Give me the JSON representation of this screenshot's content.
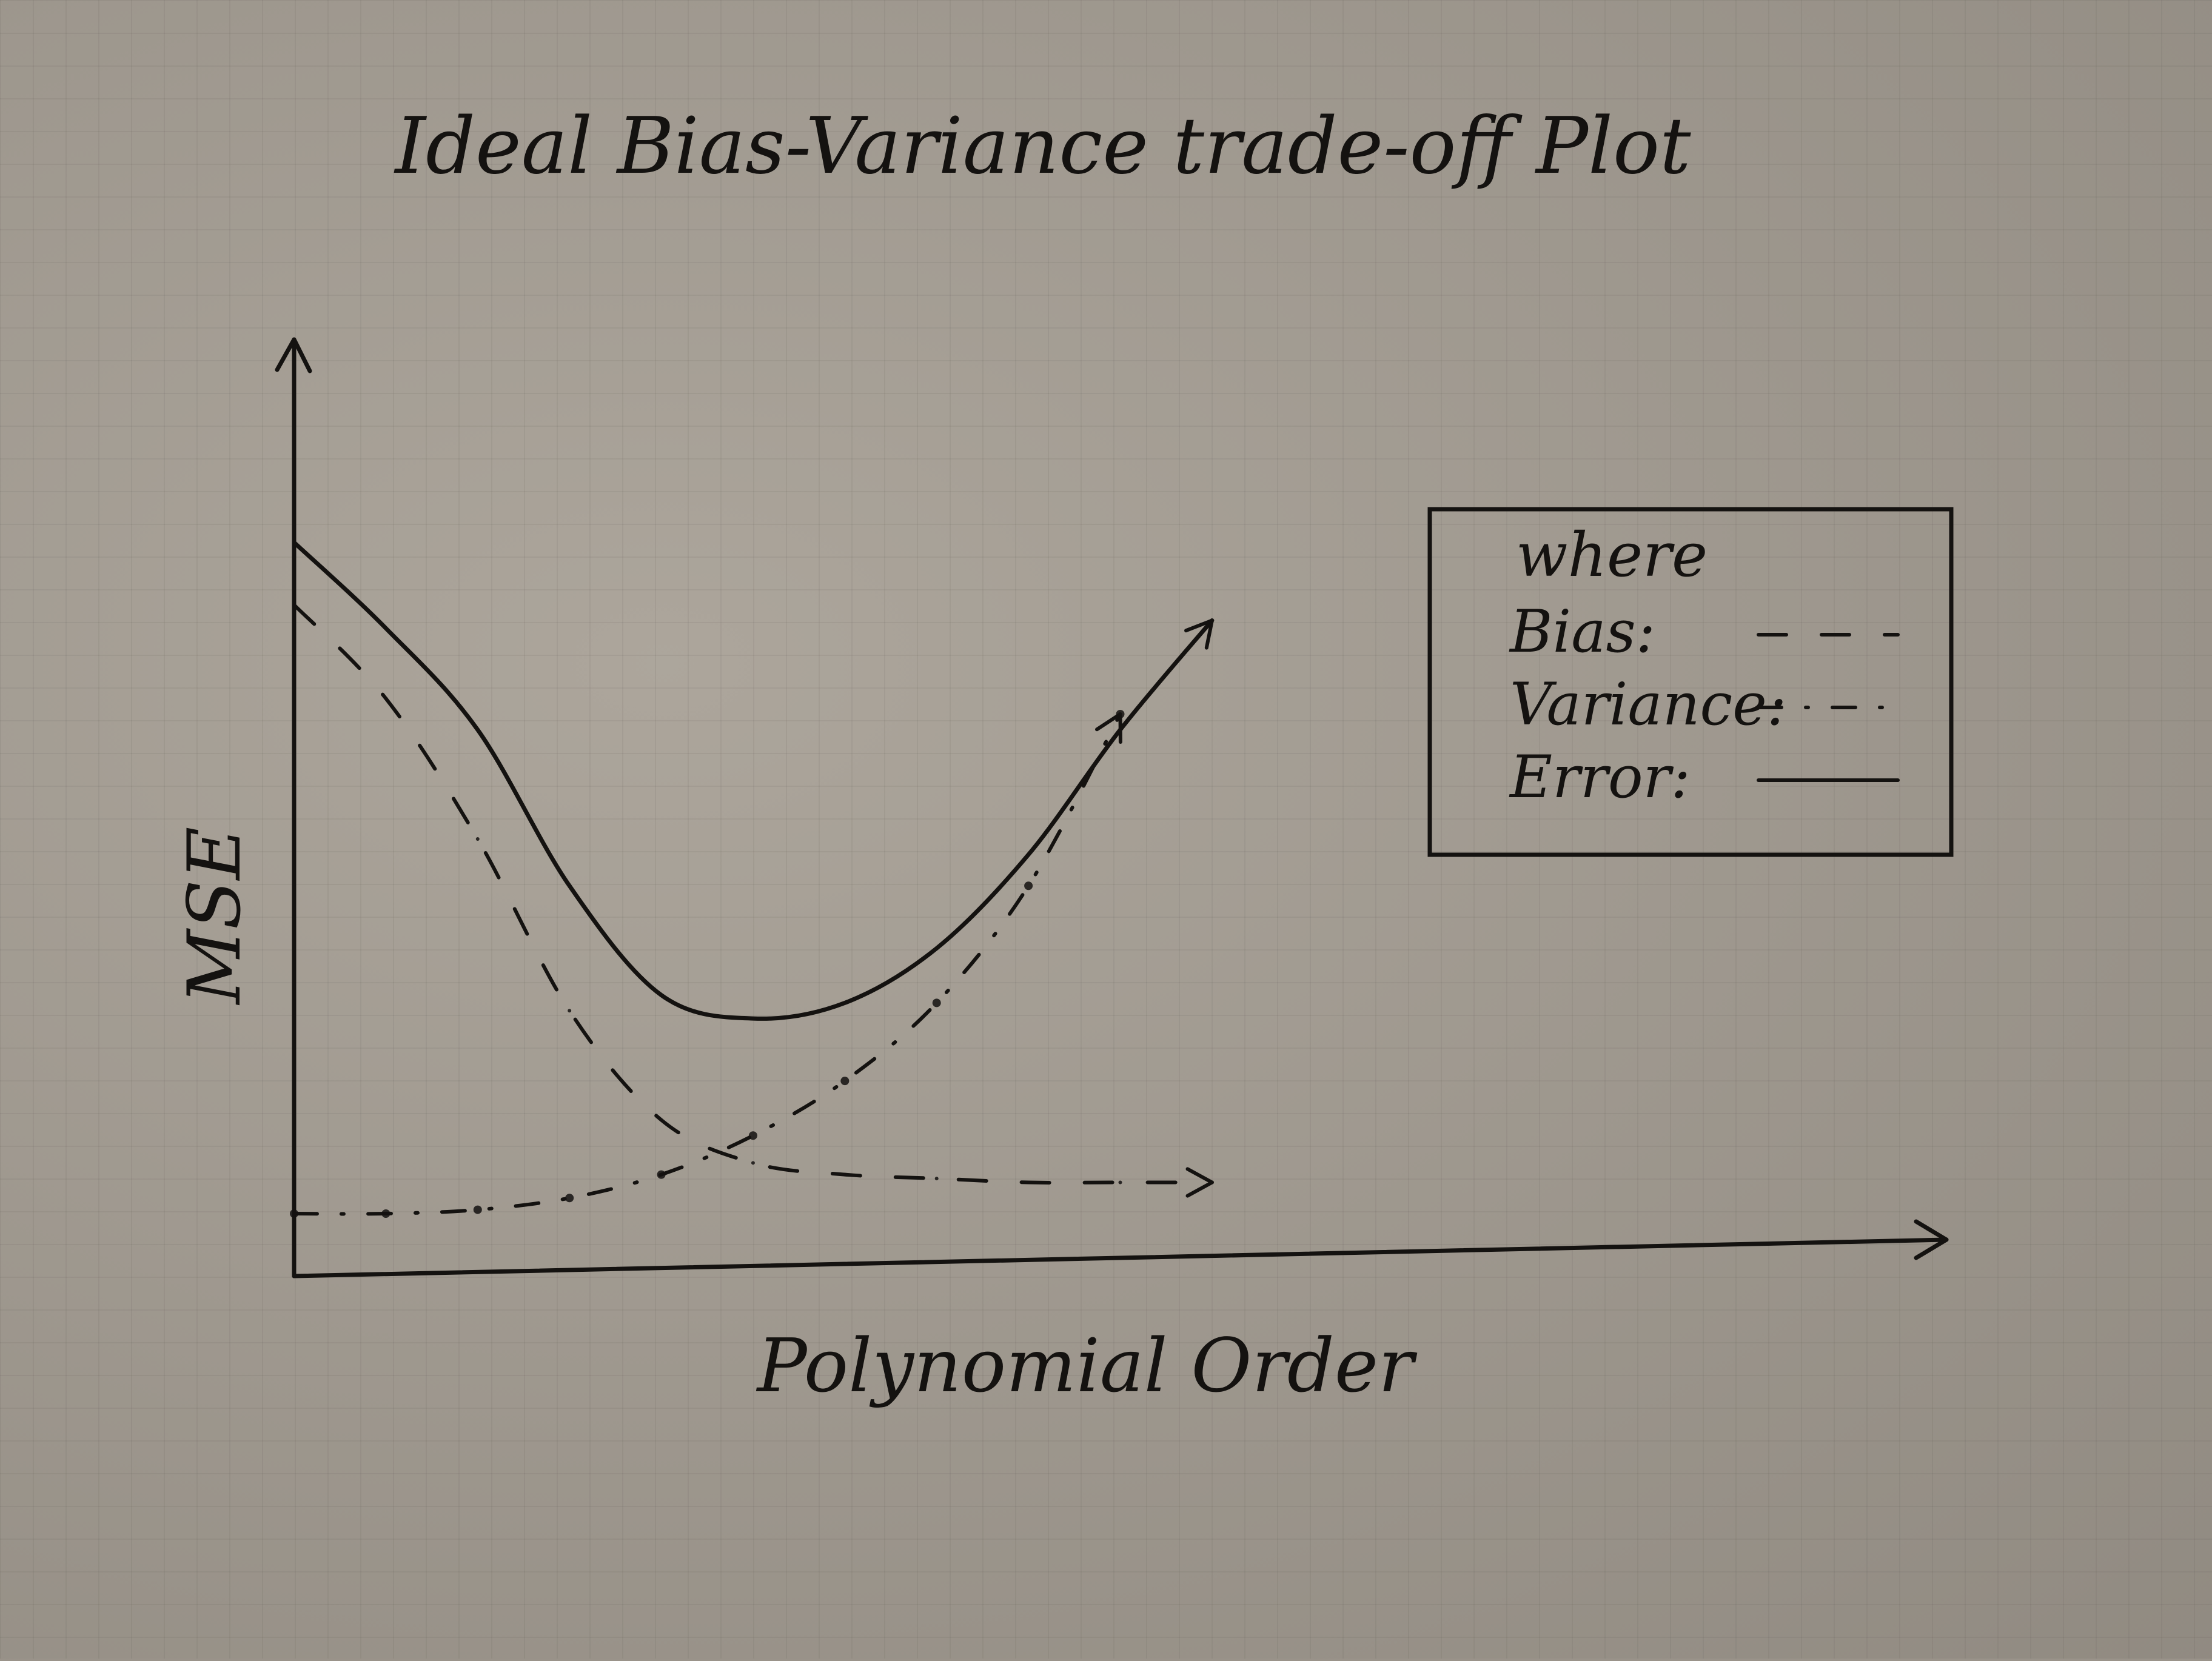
{
  "chart_data": {
    "type": "line",
    "title": "Ideal Bias-Variance trade-off Plot",
    "xlabel": "Polynomial Order",
    "ylabel": "MSE",
    "x": [
      0,
      1,
      2,
      3,
      4,
      5,
      6,
      7,
      8,
      9,
      10
    ],
    "series": [
      {
        "name": "Bias",
        "style": "dashed",
        "values": [
          8.6,
          7.4,
          5.6,
          3.4,
          2.0,
          1.45,
          1.3,
          1.25,
          1.2,
          1.2,
          1.2
        ]
      },
      {
        "name": "Variance",
        "style": "dash-dot",
        "values": [
          0.8,
          0.8,
          0.85,
          1.0,
          1.3,
          1.8,
          2.5,
          3.5,
          5.0,
          7.2,
          null
        ]
      },
      {
        "name": "Error",
        "style": "solid",
        "values": [
          9.4,
          8.3,
          7.0,
          5.0,
          3.6,
          3.3,
          3.5,
          4.2,
          5.4,
          7.0,
          8.4
        ]
      }
    ],
    "legend": {
      "heading": "where",
      "placement": "right",
      "entries": [
        {
          "label": "Bias:",
          "style": "dashed"
        },
        {
          "label": "Variance:",
          "style": "dash-dot"
        },
        {
          "label": "Error:",
          "style": "solid"
        }
      ]
    },
    "xlim": [
      0,
      18
    ],
    "ylim": [
      0,
      12
    ],
    "grid": false,
    "ink_color": "#141210"
  }
}
